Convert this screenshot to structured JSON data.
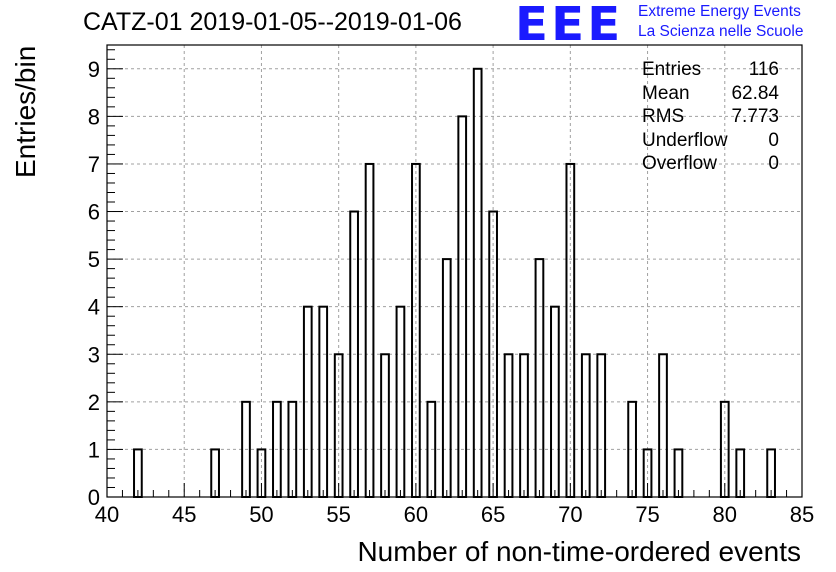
{
  "chart_data": {
    "type": "bar",
    "title": "CATZ-01 2019-01-05--2019-01-06",
    "xlabel": "Number of non-time-ordered events",
    "ylabel": "Entries/bin",
    "xlim": [
      40,
      85
    ],
    "ylim": [
      0,
      9.5
    ],
    "xticks": [
      "40",
      "45",
      "50",
      "55",
      "60",
      "65",
      "70",
      "75",
      "80",
      "85"
    ],
    "yticks": [
      "0",
      "1",
      "2",
      "3",
      "4",
      "5",
      "6",
      "7",
      "8",
      "9"
    ],
    "grid": true,
    "bins": [
      {
        "x": 42,
        "value": 1
      },
      {
        "x": 47,
        "value": 1
      },
      {
        "x": 49,
        "value": 2
      },
      {
        "x": 50,
        "value": 1
      },
      {
        "x": 51,
        "value": 2
      },
      {
        "x": 52,
        "value": 2
      },
      {
        "x": 53,
        "value": 4
      },
      {
        "x": 54,
        "value": 4
      },
      {
        "x": 55,
        "value": 3
      },
      {
        "x": 56,
        "value": 6
      },
      {
        "x": 57,
        "value": 7
      },
      {
        "x": 58,
        "value": 3
      },
      {
        "x": 59,
        "value": 4
      },
      {
        "x": 60,
        "value": 7
      },
      {
        "x": 61,
        "value": 2
      },
      {
        "x": 62,
        "value": 5
      },
      {
        "x": 63,
        "value": 8
      },
      {
        "x": 64,
        "value": 9
      },
      {
        "x": 65,
        "value": 6
      },
      {
        "x": 66,
        "value": 3
      },
      {
        "x": 67,
        "value": 3
      },
      {
        "x": 68,
        "value": 5
      },
      {
        "x": 69,
        "value": 4
      },
      {
        "x": 70,
        "value": 7
      },
      {
        "x": 71,
        "value": 3
      },
      {
        "x": 72,
        "value": 3
      },
      {
        "x": 74,
        "value": 2
      },
      {
        "x": 75,
        "value": 1
      },
      {
        "x": 76,
        "value": 3
      },
      {
        "x": 77,
        "value": 1
      },
      {
        "x": 80,
        "value": 2
      },
      {
        "x": 81,
        "value": 1
      },
      {
        "x": 83,
        "value": 1
      }
    ],
    "stats": [
      {
        "label": "Entries",
        "value": "116"
      },
      {
        "label": "Mean",
        "value": "62.84"
      },
      {
        "label": "RMS",
        "value": "7.773"
      },
      {
        "label": "Underflow",
        "value": "0"
      },
      {
        "label": "Overflow",
        "value": "0"
      }
    ]
  },
  "logo": {
    "mark": "EEE",
    "line1": "Extreme Energy Events",
    "line2": "La Scienza nelle Scuole"
  },
  "colors": {
    "logo": "#1a1aff",
    "grid": "#a0a0a0",
    "bar": "#000000"
  }
}
